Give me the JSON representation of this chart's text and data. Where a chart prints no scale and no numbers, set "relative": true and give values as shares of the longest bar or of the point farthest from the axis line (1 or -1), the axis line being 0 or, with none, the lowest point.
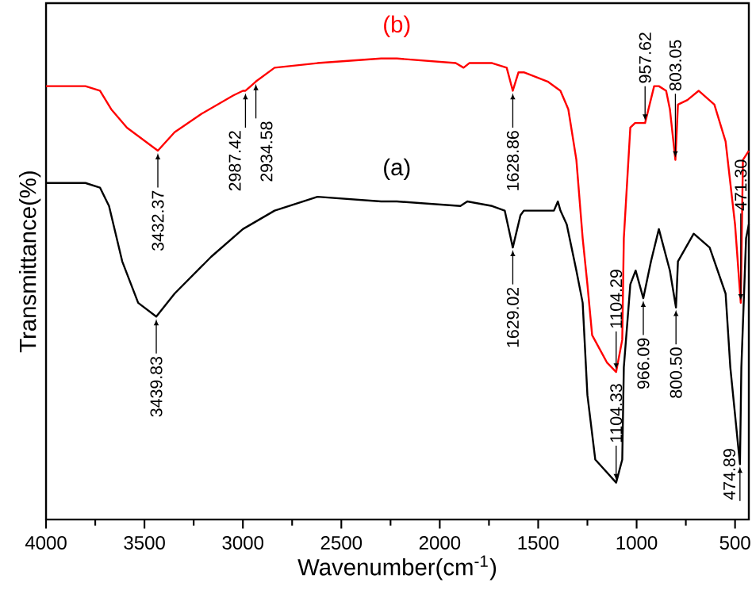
{
  "chart_data": {
    "type": "line",
    "relative": true,
    "xlabel": "Wavenumber(cm$^{-1}$)",
    "ylabel": "Transmittance(%)",
    "xlim": [
      4000,
      430
    ],
    "xticks": [
      4000,
      3500,
      3000,
      2500,
      2000,
      1500,
      1000,
      500
    ],
    "tick_labels": "x",
    "grid": false,
    "legend": false,
    "marker": "none",
    "line_style": "solid",
    "series": [
      {
        "name": "(a)",
        "color": "#000000",
        "x": [
          4000,
          3800,
          3726,
          3680,
          3613,
          3532,
          3440,
          3347,
          3161,
          3000,
          2839,
          2621,
          2298,
          2218,
          1895,
          1860,
          1734,
          1670,
          1629,
          1590,
          1573,
          1420,
          1400,
          1387,
          1355,
          1306,
          1274,
          1250,
          1210,
          1104,
          1073,
          1065,
          1032,
          1005,
          966,
          927,
          887,
          831,
          800,
          790,
          710,
          629,
          548,
          524,
          475,
          468,
          444,
          430
        ],
        "values": [
          0.73,
          0.73,
          0.72,
          0.68,
          0.56,
          0.47,
          0.44,
          0.49,
          0.57,
          0.63,
          0.67,
          0.7,
          0.69,
          0.69,
          0.68,
          0.69,
          0.68,
          0.67,
          0.59,
          0.66,
          0.67,
          0.67,
          0.69,
          0.67,
          0.64,
          0.54,
          0.47,
          0.27,
          0.13,
          0.08,
          0.13,
          0.33,
          0.51,
          0.54,
          0.48,
          0.56,
          0.63,
          0.54,
          0.46,
          0.56,
          0.62,
          0.59,
          0.49,
          0.33,
          0.12,
          0.33,
          0.61,
          0.64
        ]
      },
      {
        "name": "(b)",
        "color": "#ff0000",
        "x": [
          4000,
          3800,
          3726,
          3669,
          3589,
          3432,
          3347,
          3210,
          3048,
          3000,
          2987,
          2960,
          2934,
          2839,
          2621,
          2298,
          2218,
          1919,
          1879,
          1850,
          1734,
          1660,
          1629,
          1600,
          1573,
          1452,
          1387,
          1347,
          1306,
          1274,
          1250,
          1226,
          1150,
          1104,
          1073,
          1065,
          1032,
          1008,
          957,
          911,
          887,
          850,
          831,
          803,
          790,
          742,
          685,
          605,
          548,
          500,
          471,
          460,
          430
        ],
        "values": [
          0.94,
          0.94,
          0.93,
          0.89,
          0.85,
          0.8,
          0.84,
          0.88,
          0.92,
          0.93,
          0.93,
          0.94,
          0.95,
          0.98,
          0.99,
          1.0,
          1.0,
          0.99,
          0.98,
          0.99,
          0.99,
          0.98,
          0.93,
          0.97,
          0.97,
          0.95,
          0.93,
          0.89,
          0.78,
          0.61,
          0.51,
          0.4,
          0.34,
          0.32,
          0.39,
          0.61,
          0.85,
          0.86,
          0.86,
          0.94,
          0.94,
          0.93,
          0.89,
          0.78,
          0.9,
          0.91,
          0.93,
          0.9,
          0.82,
          0.64,
          0.47,
          0.78,
          0.8
        ]
      }
    ],
    "annotations": [
      {
        "text": "3432.37",
        "x": 3432,
        "y": 0.8
      },
      {
        "text": "2987.42",
        "x": 2987,
        "y": 0.93
      },
      {
        "text": "2934.58",
        "x": 2934,
        "y": 0.95
      },
      {
        "text": "1628.86",
        "x": 1629,
        "y": 0.93
      },
      {
        "text": "1104.29",
        "x": 1104,
        "y": 0.32
      },
      {
        "text": "957.62",
        "x": 957,
        "y": 0.86
      },
      {
        "text": "803.05",
        "x": 803,
        "y": 0.78
      },
      {
        "text": "471.30",
        "x": 471,
        "y": 0.47
      },
      {
        "text": "3439.83",
        "x": 3440,
        "y": 0.44
      },
      {
        "text": "1629.02",
        "x": 1629,
        "y": 0.59
      },
      {
        "text": "1104.33",
        "x": 1104,
        "y": 0.08
      },
      {
        "text": "966.09",
        "x": 966,
        "y": 0.48
      },
      {
        "text": "800.50",
        "x": 800,
        "y": 0.46
      },
      {
        "text": "474.89",
        "x": 475,
        "y": 0.12
      }
    ]
  }
}
